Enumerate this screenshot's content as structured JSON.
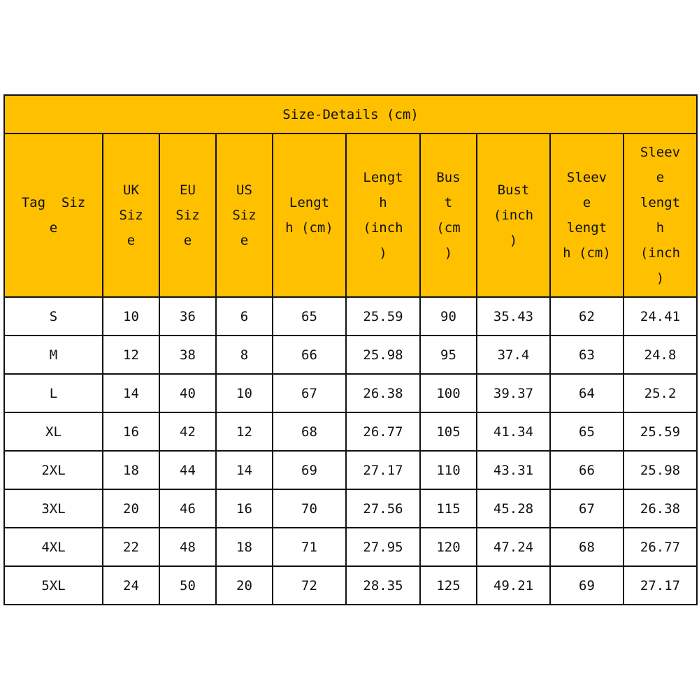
{
  "title": "Size-Details  (cm)",
  "header_color": "#FFC000",
  "columns": [
    [
      "Tag  Siz",
      "e"
    ],
    [
      "UK",
      "Siz",
      "e"
    ],
    [
      "EU",
      "Siz",
      "e"
    ],
    [
      "US",
      "Siz",
      "e"
    ],
    [
      "Lengt",
      "h (cm)"
    ],
    [
      "Lengt",
      "h",
      "(inch",
      ")"
    ],
    [
      "Bus",
      "t",
      "(cm",
      ")"
    ],
    [
      "Bust",
      "(inch",
      ")"
    ],
    [
      "Sleev",
      "e",
      "lengt",
      "h (cm)"
    ],
    [
      "Sleev",
      "e",
      "lengt",
      "h",
      "(inch",
      ")"
    ]
  ],
  "rows": [
    [
      "S",
      "10",
      "36",
      "6",
      "65",
      "25.59",
      "90",
      "35.43",
      "62",
      "24.41"
    ],
    [
      "M",
      "12",
      "38",
      "8",
      "66",
      "25.98",
      "95",
      "37.4",
      "63",
      "24.8"
    ],
    [
      "L",
      "14",
      "40",
      "10",
      "67",
      "26.38",
      "100",
      "39.37",
      "64",
      "25.2"
    ],
    [
      "XL",
      "16",
      "42",
      "12",
      "68",
      "26.77",
      "105",
      "41.34",
      "65",
      "25.59"
    ],
    [
      "2XL",
      "18",
      "44",
      "14",
      "69",
      "27.17",
      "110",
      "43.31",
      "66",
      "25.98"
    ],
    [
      "3XL",
      "20",
      "46",
      "16",
      "70",
      "27.56",
      "115",
      "45.28",
      "67",
      "26.38"
    ],
    [
      "4XL",
      "22",
      "48",
      "18",
      "71",
      "27.95",
      "120",
      "47.24",
      "68",
      "26.77"
    ],
    [
      "5XL",
      "24",
      "50",
      "20",
      "72",
      "28.35",
      "125",
      "49.21",
      "69",
      "27.17"
    ]
  ]
}
